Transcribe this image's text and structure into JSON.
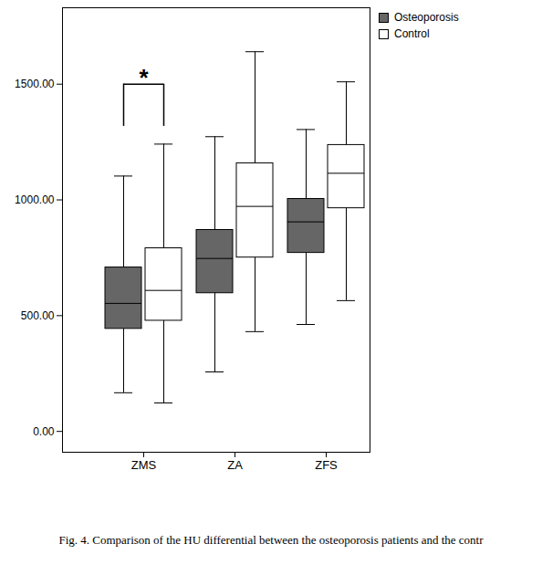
{
  "chart_data": {
    "type": "box",
    "caption": "Fig. 4. Comparison of the HU differential between the osteoporosis patients and the contr",
    "categories": [
      "ZMS",
      "ZA",
      "ZFS"
    ],
    "series": [
      {
        "name": "Osteoporosis",
        "color": "#666666",
        "min": [
          167,
          257,
          462
        ],
        "q1": [
          443,
          597,
          771
        ],
        "median": [
          553,
          747,
          905
        ],
        "q3": [
          708,
          870,
          1004
        ],
        "max": [
          1103,
          1273,
          1304
        ]
      },
      {
        "name": "Control",
        "color": "#ffffff",
        "min": [
          123,
          431,
          565
        ],
        "q1": [
          478,
          751,
          964
        ],
        "median": [
          609,
          972,
          1115
        ],
        "q3": [
          791,
          1158,
          1237
        ],
        "max": [
          1241,
          1640,
          1510
        ]
      }
    ],
    "annotations": [
      {
        "text": "*",
        "category": "ZMS"
      }
    ],
    "ylim": [
      -90,
      1830
    ],
    "yticks": [
      {
        "value": 0,
        "label": "0.00"
      },
      {
        "value": 500,
        "label": "500.00"
      },
      {
        "value": 1000,
        "label": "1000.00"
      },
      {
        "value": 1500,
        "label": "1500.00"
      }
    ],
    "grid": false,
    "legend": "top right"
  }
}
